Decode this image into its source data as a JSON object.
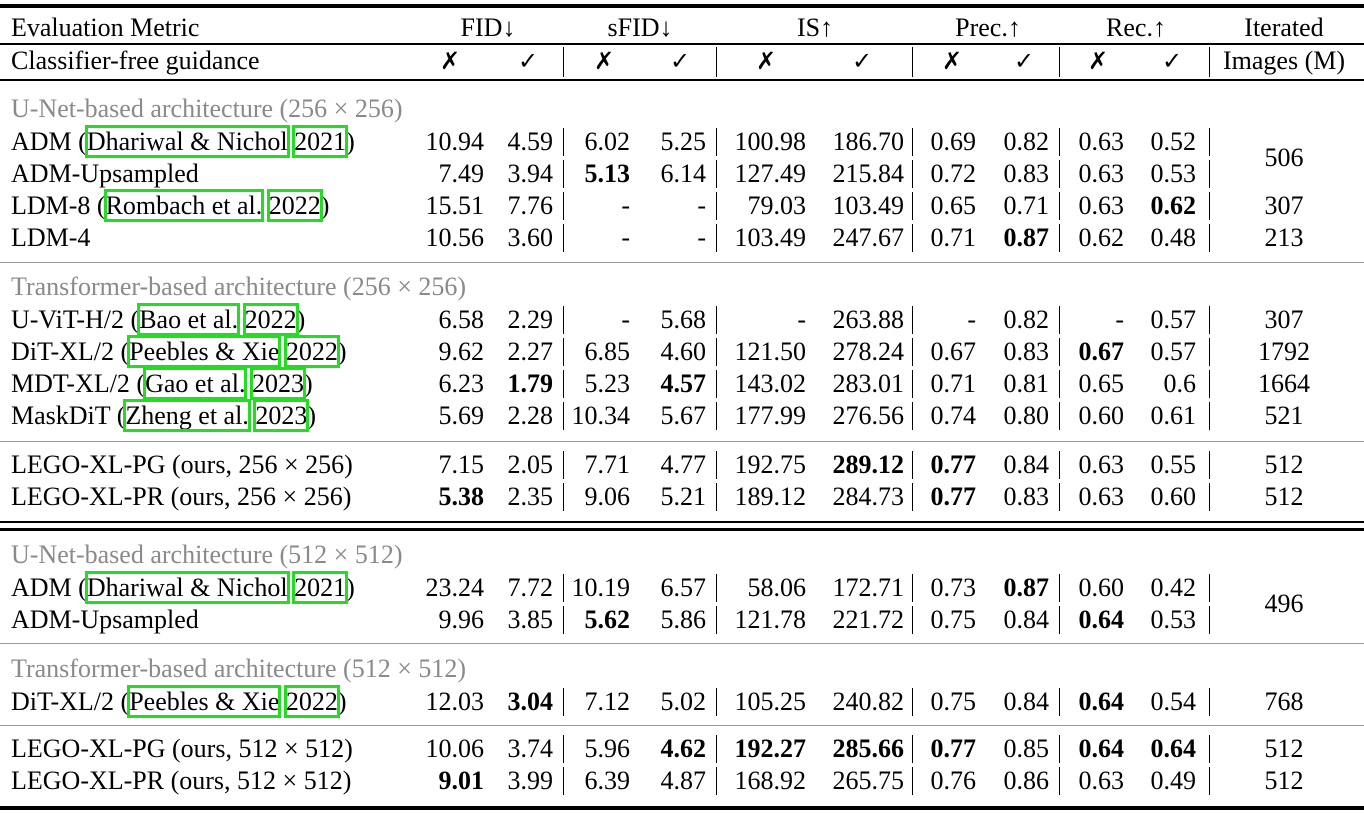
{
  "header": {
    "metric_label": "Evaluation Metric",
    "groups": [
      "FID↓",
      "sFID↓",
      "IS↑",
      "Prec.↑",
      "Rec.↑"
    ],
    "iterated_label": "Iterated",
    "cfg_label": "Classifier-free guidance",
    "no_mark": "✗",
    "yes_mark": "✓",
    "images_label": "Images (M)"
  },
  "sections": [
    {
      "title": "U-Net-based architecture (256 × 256)",
      "rows": [
        {
          "name": "ADM (",
          "cite_author": "Dhariwal & Nichol",
          "cite_year": "2021",
          "name_end": ")",
          "values": [
            "10.94",
            "4.59",
            "6.02",
            "5.25",
            "100.98",
            "186.70",
            "0.69",
            "0.82",
            "0.63",
            "0.52"
          ],
          "images": "506"
        },
        {
          "name": "ADM-Upsampled",
          "values": [
            "7.49",
            "3.94",
            "5.13",
            "6.14",
            "127.49",
            "215.84",
            "0.72",
            "0.83",
            "0.63",
            "0.53"
          ],
          "images": ""
        },
        {
          "name": "LDM-8 (",
          "cite_author": "Rombach et al.",
          "cite_year": "2022",
          "name_end": ")",
          "values": [
            "15.51",
            "7.76",
            "-",
            "-",
            "79.03",
            "103.49",
            "0.65",
            "0.71",
            "0.63",
            "0.62"
          ],
          "images": "307"
        },
        {
          "name": "LDM-4",
          "values": [
            "10.56",
            "3.60",
            "-",
            "-",
            "103.49",
            "247.67",
            "0.71",
            "0.87",
            "0.62",
            "0.48"
          ],
          "images": "213"
        }
      ]
    },
    {
      "title": "Transformer-based architecture (256 × 256)",
      "rows": [
        {
          "name": "U-ViT-H/2 (",
          "cite_author": "Bao et al.",
          "cite_year": "2022",
          "name_end": ")",
          "values": [
            "6.58",
            "2.29",
            "-",
            "5.68",
            "-",
            "263.88",
            "-",
            "0.82",
            "-",
            "0.57"
          ],
          "images": "307"
        },
        {
          "name": "DiT-XL/2 (",
          "cite_author": "Peebles & Xie",
          "cite_year": "2022",
          "name_end": ")",
          "values": [
            "9.62",
            "2.27",
            "6.85",
            "4.60",
            "121.50",
            "278.24",
            "0.67",
            "0.83",
            "0.67",
            "0.57"
          ],
          "images": "1792"
        },
        {
          "name": "MDT-XL/2 (",
          "cite_author": "Gao et al.",
          "cite_year": "2023",
          "name_end": ")",
          "values": [
            "6.23",
            "1.79",
            "5.23",
            "4.57",
            "143.02",
            "283.01",
            "0.71",
            "0.81",
            "0.65",
            "0.6"
          ],
          "images": "1664"
        },
        {
          "name": "MaskDiT (",
          "cite_author": "Zheng et al.",
          "cite_year": "2023",
          "name_end": ")",
          "values": [
            "5.69",
            "2.28",
            "10.34",
            "5.67",
            "177.99",
            "276.56",
            "0.74",
            "0.80",
            "0.60",
            "0.61"
          ],
          "images": "521"
        }
      ]
    },
    {
      "title": "",
      "rows": [
        {
          "name": "LEGO-XL-PG (ours, 256 × 256)",
          "values": [
            "7.15",
            "2.05",
            "7.71",
            "4.77",
            "192.75",
            "289.12",
            "0.77",
            "0.84",
            "0.63",
            "0.55"
          ],
          "images": "512"
        },
        {
          "name": "LEGO-XL-PR (ours, 256 × 256)",
          "values": [
            "5.38",
            "2.35",
            "9.06",
            "5.21",
            "189.12",
            "284.73",
            "0.77",
            "0.83",
            "0.63",
            "0.60"
          ],
          "images": "512"
        }
      ]
    },
    {
      "title": "U-Net-based architecture (512 × 512)",
      "rows": [
        {
          "name": "ADM (",
          "cite_author": "Dhariwal & Nichol",
          "cite_year": "2021",
          "name_end": ")",
          "values": [
            "23.24",
            "7.72",
            "10.19",
            "6.57",
            "58.06",
            "172.71",
            "0.73",
            "0.87",
            "0.60",
            "0.42"
          ],
          "images": "496"
        },
        {
          "name": "ADM-Upsampled",
          "values": [
            "9.96",
            "3.85",
            "5.62",
            "5.86",
            "121.78",
            "221.72",
            "0.75",
            "0.84",
            "0.64",
            "0.53"
          ],
          "images": ""
        }
      ]
    },
    {
      "title": "Transformer-based architecture (512 × 512)",
      "rows": [
        {
          "name": "DiT-XL/2 (",
          "cite_author": "Peebles & Xie",
          "cite_year": "2022",
          "name_end": ")",
          "values": [
            "12.03",
            "3.04",
            "7.12",
            "5.02",
            "105.25",
            "240.82",
            "0.75",
            "0.84",
            "0.64",
            "0.54"
          ],
          "images": "768"
        }
      ]
    },
    {
      "title": "",
      "rows": [
        {
          "name": "LEGO-XL-PG (ours, 512 × 512)",
          "values": [
            "10.06",
            "3.74",
            "5.96",
            "4.62",
            "192.27",
            "285.66",
            "0.77",
            "0.85",
            "0.64",
            "0.64"
          ],
          "images": "512"
        },
        {
          "name": "LEGO-XL-PR (ours, 512 × 512)",
          "values": [
            "9.01",
            "3.99",
            "6.39",
            "4.87",
            "168.92",
            "265.75",
            "0.76",
            "0.86",
            "0.63",
            "0.49"
          ],
          "images": "512"
        }
      ]
    }
  ]
}
